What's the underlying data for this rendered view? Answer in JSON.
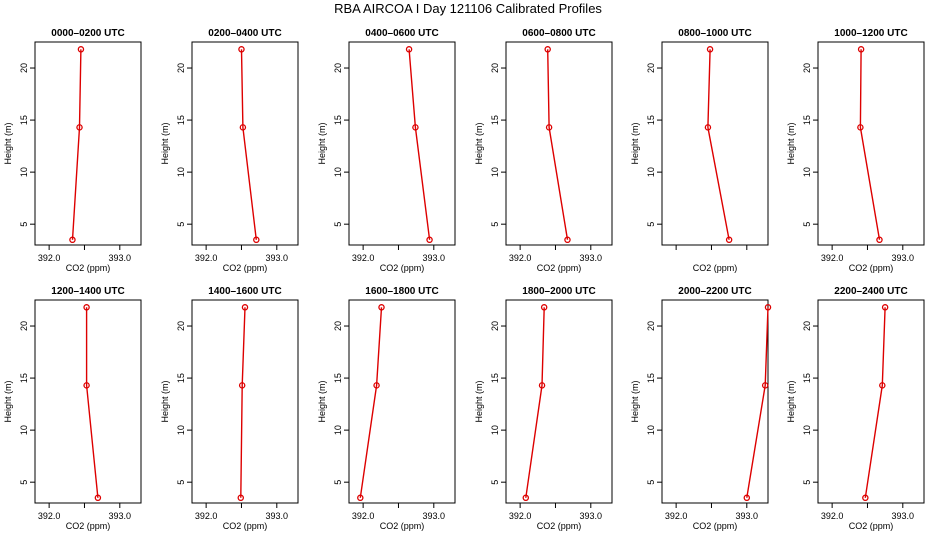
{
  "title": "RBA AIRCOA I  Day 121106  Calibrated Profiles",
  "colors": {
    "series": "#dd0000",
    "axis": "#000000",
    "background": "#ffffff"
  },
  "chart_data": [
    {
      "type": "line",
      "title": "0000–0200 UTC",
      "xlabel": "CO2 (ppm)",
      "ylabel": "Height (m)",
      "xlim": [
        391.8,
        393.3
      ],
      "ylim": [
        3,
        22.5
      ],
      "xticks": [
        392.0,
        392.5,
        393.0
      ],
      "xtick_labels": [
        "392.0",
        "",
        "393.0"
      ],
      "yticks": [
        5,
        10,
        15,
        20
      ],
      "points": [
        {
          "x": 392.33,
          "y": 3.5
        },
        {
          "x": 392.43,
          "y": 14.3
        },
        {
          "x": 392.45,
          "y": 21.8
        }
      ]
    },
    {
      "type": "line",
      "title": "0200–0400 UTC",
      "xlabel": "CO2 (ppm)",
      "ylabel": "Height (m)",
      "xlim": [
        391.8,
        393.3
      ],
      "ylim": [
        3,
        22.5
      ],
      "xticks": [
        392.0,
        392.5,
        393.0
      ],
      "xtick_labels": [
        "392.0",
        "",
        "393.0"
      ],
      "yticks": [
        5,
        10,
        15,
        20
      ],
      "points": [
        {
          "x": 392.71,
          "y": 3.5
        },
        {
          "x": 392.52,
          "y": 14.3
        },
        {
          "x": 392.5,
          "y": 21.8
        }
      ]
    },
    {
      "type": "line",
      "title": "0400–0600 UTC",
      "xlabel": "CO2 (ppm)",
      "ylabel": "Height (m)",
      "xlim": [
        391.8,
        393.3
      ],
      "ylim": [
        3,
        22.5
      ],
      "xticks": [
        392.0,
        392.5,
        393.0
      ],
      "xtick_labels": [
        "392.0",
        "",
        "393.0"
      ],
      "yticks": [
        5,
        10,
        15,
        20
      ],
      "points": [
        {
          "x": 392.94,
          "y": 3.5
        },
        {
          "x": 392.74,
          "y": 14.3
        },
        {
          "x": 392.65,
          "y": 21.8
        }
      ]
    },
    {
      "type": "line",
      "title": "0600–0800 UTC",
      "xlabel": "CO2 (ppm)",
      "ylabel": "Height (m)",
      "xlim": [
        391.8,
        393.3
      ],
      "ylim": [
        3,
        22.5
      ],
      "xticks": [
        392.0,
        392.5,
        393.0
      ],
      "xtick_labels": [
        "392.0",
        "",
        "393.0"
      ],
      "yticks": [
        5,
        10,
        15,
        20
      ],
      "points": [
        {
          "x": 392.67,
          "y": 3.5
        },
        {
          "x": 392.41,
          "y": 14.3
        },
        {
          "x": 392.39,
          "y": 21.8
        }
      ]
    },
    {
      "type": "line",
      "title": "0800–1000 UTC",
      "xlabel": "CO2 (ppm)",
      "ylabel": "Height (m)",
      "xlim": [
        391.8,
        393.3
      ],
      "ylim": [
        3,
        22.5
      ],
      "xticks": [
        392.0,
        392.5,
        393.0
      ],
      "xtick_labels": [
        "",
        "",
        ""
      ],
      "yticks": [
        5,
        10,
        15,
        20
      ],
      "points": [
        {
          "x": 392.75,
          "y": 3.5
        },
        {
          "x": 392.45,
          "y": 14.3
        },
        {
          "x": 392.48,
          "y": 21.8
        }
      ]
    },
    {
      "type": "line",
      "title": "1000–1200 UTC",
      "xlabel": "CO2 (ppm)",
      "ylabel": "Height (m)",
      "xlim": [
        391.8,
        393.3
      ],
      "ylim": [
        3,
        22.5
      ],
      "xticks": [
        392.0,
        392.5,
        393.0
      ],
      "xtick_labels": [
        "392.0",
        "",
        "393.0"
      ],
      "yticks": [
        5,
        10,
        15,
        20
      ],
      "points": [
        {
          "x": 392.67,
          "y": 3.5
        },
        {
          "x": 392.4,
          "y": 14.3
        },
        {
          "x": 392.41,
          "y": 21.8
        }
      ]
    },
    {
      "type": "line",
      "title": "1200–1400 UTC",
      "xlabel": "CO2 (ppm)",
      "ylabel": "Height (m)",
      "xlim": [
        391.8,
        393.3
      ],
      "ylim": [
        3,
        22.5
      ],
      "xticks": [
        392.0,
        392.5,
        393.0
      ],
      "xtick_labels": [
        "392.0",
        "",
        "393.0"
      ],
      "yticks": [
        5,
        10,
        15,
        20
      ],
      "points": [
        {
          "x": 392.69,
          "y": 3.5
        },
        {
          "x": 392.53,
          "y": 14.3
        },
        {
          "x": 392.53,
          "y": 21.8
        }
      ]
    },
    {
      "type": "line",
      "title": "1400–1600 UTC",
      "xlabel": "CO2 (ppm)",
      "ylabel": "Height (m)",
      "xlim": [
        391.8,
        393.3
      ],
      "ylim": [
        3,
        22.5
      ],
      "xticks": [
        392.0,
        392.5,
        393.0
      ],
      "xtick_labels": [
        "392.0",
        "",
        "393.0"
      ],
      "yticks": [
        5,
        10,
        15,
        20
      ],
      "points": [
        {
          "x": 392.49,
          "y": 3.5
        },
        {
          "x": 392.51,
          "y": 14.3
        },
        {
          "x": 392.55,
          "y": 21.8
        }
      ]
    },
    {
      "type": "line",
      "title": "1600–1800 UTC",
      "xlabel": "CO2 (ppm)",
      "ylabel": "Height (m)",
      "xlim": [
        391.8,
        393.3
      ],
      "ylim": [
        3,
        22.5
      ],
      "xticks": [
        392.0,
        392.5,
        393.0
      ],
      "xtick_labels": [
        "392.0",
        "",
        "393.0"
      ],
      "yticks": [
        5,
        10,
        15,
        20
      ],
      "points": [
        {
          "x": 391.96,
          "y": 3.5
        },
        {
          "x": 392.19,
          "y": 14.3
        },
        {
          "x": 392.26,
          "y": 21.8
        }
      ]
    },
    {
      "type": "line",
      "title": "1800–2000 UTC",
      "xlabel": "CO2 (ppm)",
      "ylabel": "Height (m)",
      "xlim": [
        391.8,
        393.3
      ],
      "ylim": [
        3,
        22.5
      ],
      "xticks": [
        392.0,
        392.5,
        393.0
      ],
      "xtick_labels": [
        "392.0",
        "",
        "393.0"
      ],
      "yticks": [
        5,
        10,
        15,
        20
      ],
      "points": [
        {
          "x": 392.08,
          "y": 3.5
        },
        {
          "x": 392.31,
          "y": 14.3
        },
        {
          "x": 392.34,
          "y": 21.8
        }
      ]
    },
    {
      "type": "line",
      "title": "2000–2200 UTC",
      "xlabel": "CO2 (ppm)",
      "ylabel": "Height (m)",
      "xlim": [
        391.8,
        393.3
      ],
      "ylim": [
        3,
        22.5
      ],
      "xticks": [
        392.0,
        392.5,
        393.0
      ],
      "xtick_labels": [
        "392.0",
        "",
        "393.0"
      ],
      "yticks": [
        5,
        10,
        15,
        20
      ],
      "points": [
        {
          "x": 393.0,
          "y": 3.5
        },
        {
          "x": 393.26,
          "y": 14.3
        },
        {
          "x": 393.3,
          "y": 21.8
        }
      ]
    },
    {
      "type": "line",
      "title": "2200–2400 UTC",
      "xlabel": "CO2 (ppm)",
      "ylabel": "Height (m)",
      "xlim": [
        391.8,
        393.3
      ],
      "ylim": [
        3,
        22.5
      ],
      "xticks": [
        392.0,
        392.5,
        393.0
      ],
      "xtick_labels": [
        "392.0",
        "",
        "393.0"
      ],
      "yticks": [
        5,
        10,
        15,
        20
      ],
      "points": [
        {
          "x": 392.47,
          "y": 3.5
        },
        {
          "x": 392.71,
          "y": 14.3
        },
        {
          "x": 392.75,
          "y": 21.8
        }
      ]
    }
  ]
}
